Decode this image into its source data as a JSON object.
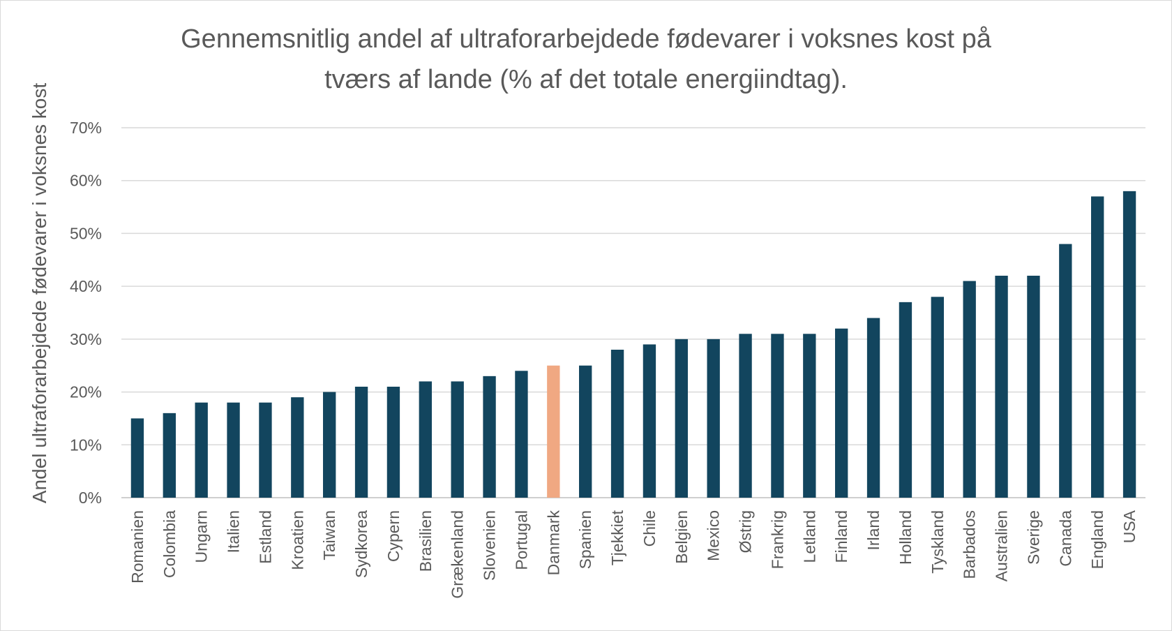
{
  "chart_data": {
    "type": "bar",
    "title_lines": [
      "Gennemsnitlig andel af ultraforarbejdede fødevarer i voksnes kost på",
      "tværs af lande (% af det totale energiindtag)."
    ],
    "xlabel": "",
    "ylabel": "Andel ultraforarbejdede fødevarer i voksnes kost",
    "ylim": [
      0,
      70
    ],
    "yticks": [
      0,
      10,
      20,
      30,
      40,
      50,
      60,
      70
    ],
    "ytick_labels": [
      "0%",
      "10%",
      "20%",
      "30%",
      "40%",
      "50%",
      "60%",
      "70%"
    ],
    "grid": true,
    "legend": "none",
    "categories": [
      "Romanien",
      "Colombia",
      "Ungarn",
      "Italien",
      "Estland",
      "Kroatien",
      "Taiwan",
      "Sydkorea",
      "Cypern",
      "Brasilien",
      "Grækenland",
      "Slovenien",
      "Portugal",
      "Danmark",
      "Spanien",
      "Tjekkiet",
      "Chile",
      "Belgien",
      "Mexico",
      "Østrig",
      "Frankrig",
      "Letland",
      "Finland",
      "Irland",
      "Holland",
      "Tyskland",
      "Barbados",
      "Australien",
      "Sverige",
      "Canada",
      "England",
      "USA"
    ],
    "values": [
      15,
      16,
      18,
      18,
      18,
      19,
      20,
      21,
      21,
      22,
      22,
      23,
      24,
      25,
      25,
      28,
      29,
      30,
      30,
      31,
      31,
      31,
      32,
      34,
      37,
      38,
      41,
      42,
      42,
      48,
      57,
      58
    ],
    "colors": {
      "bar": "#12455e",
      "highlight": "#f0a882"
    },
    "highlight_category": "Danmark"
  }
}
